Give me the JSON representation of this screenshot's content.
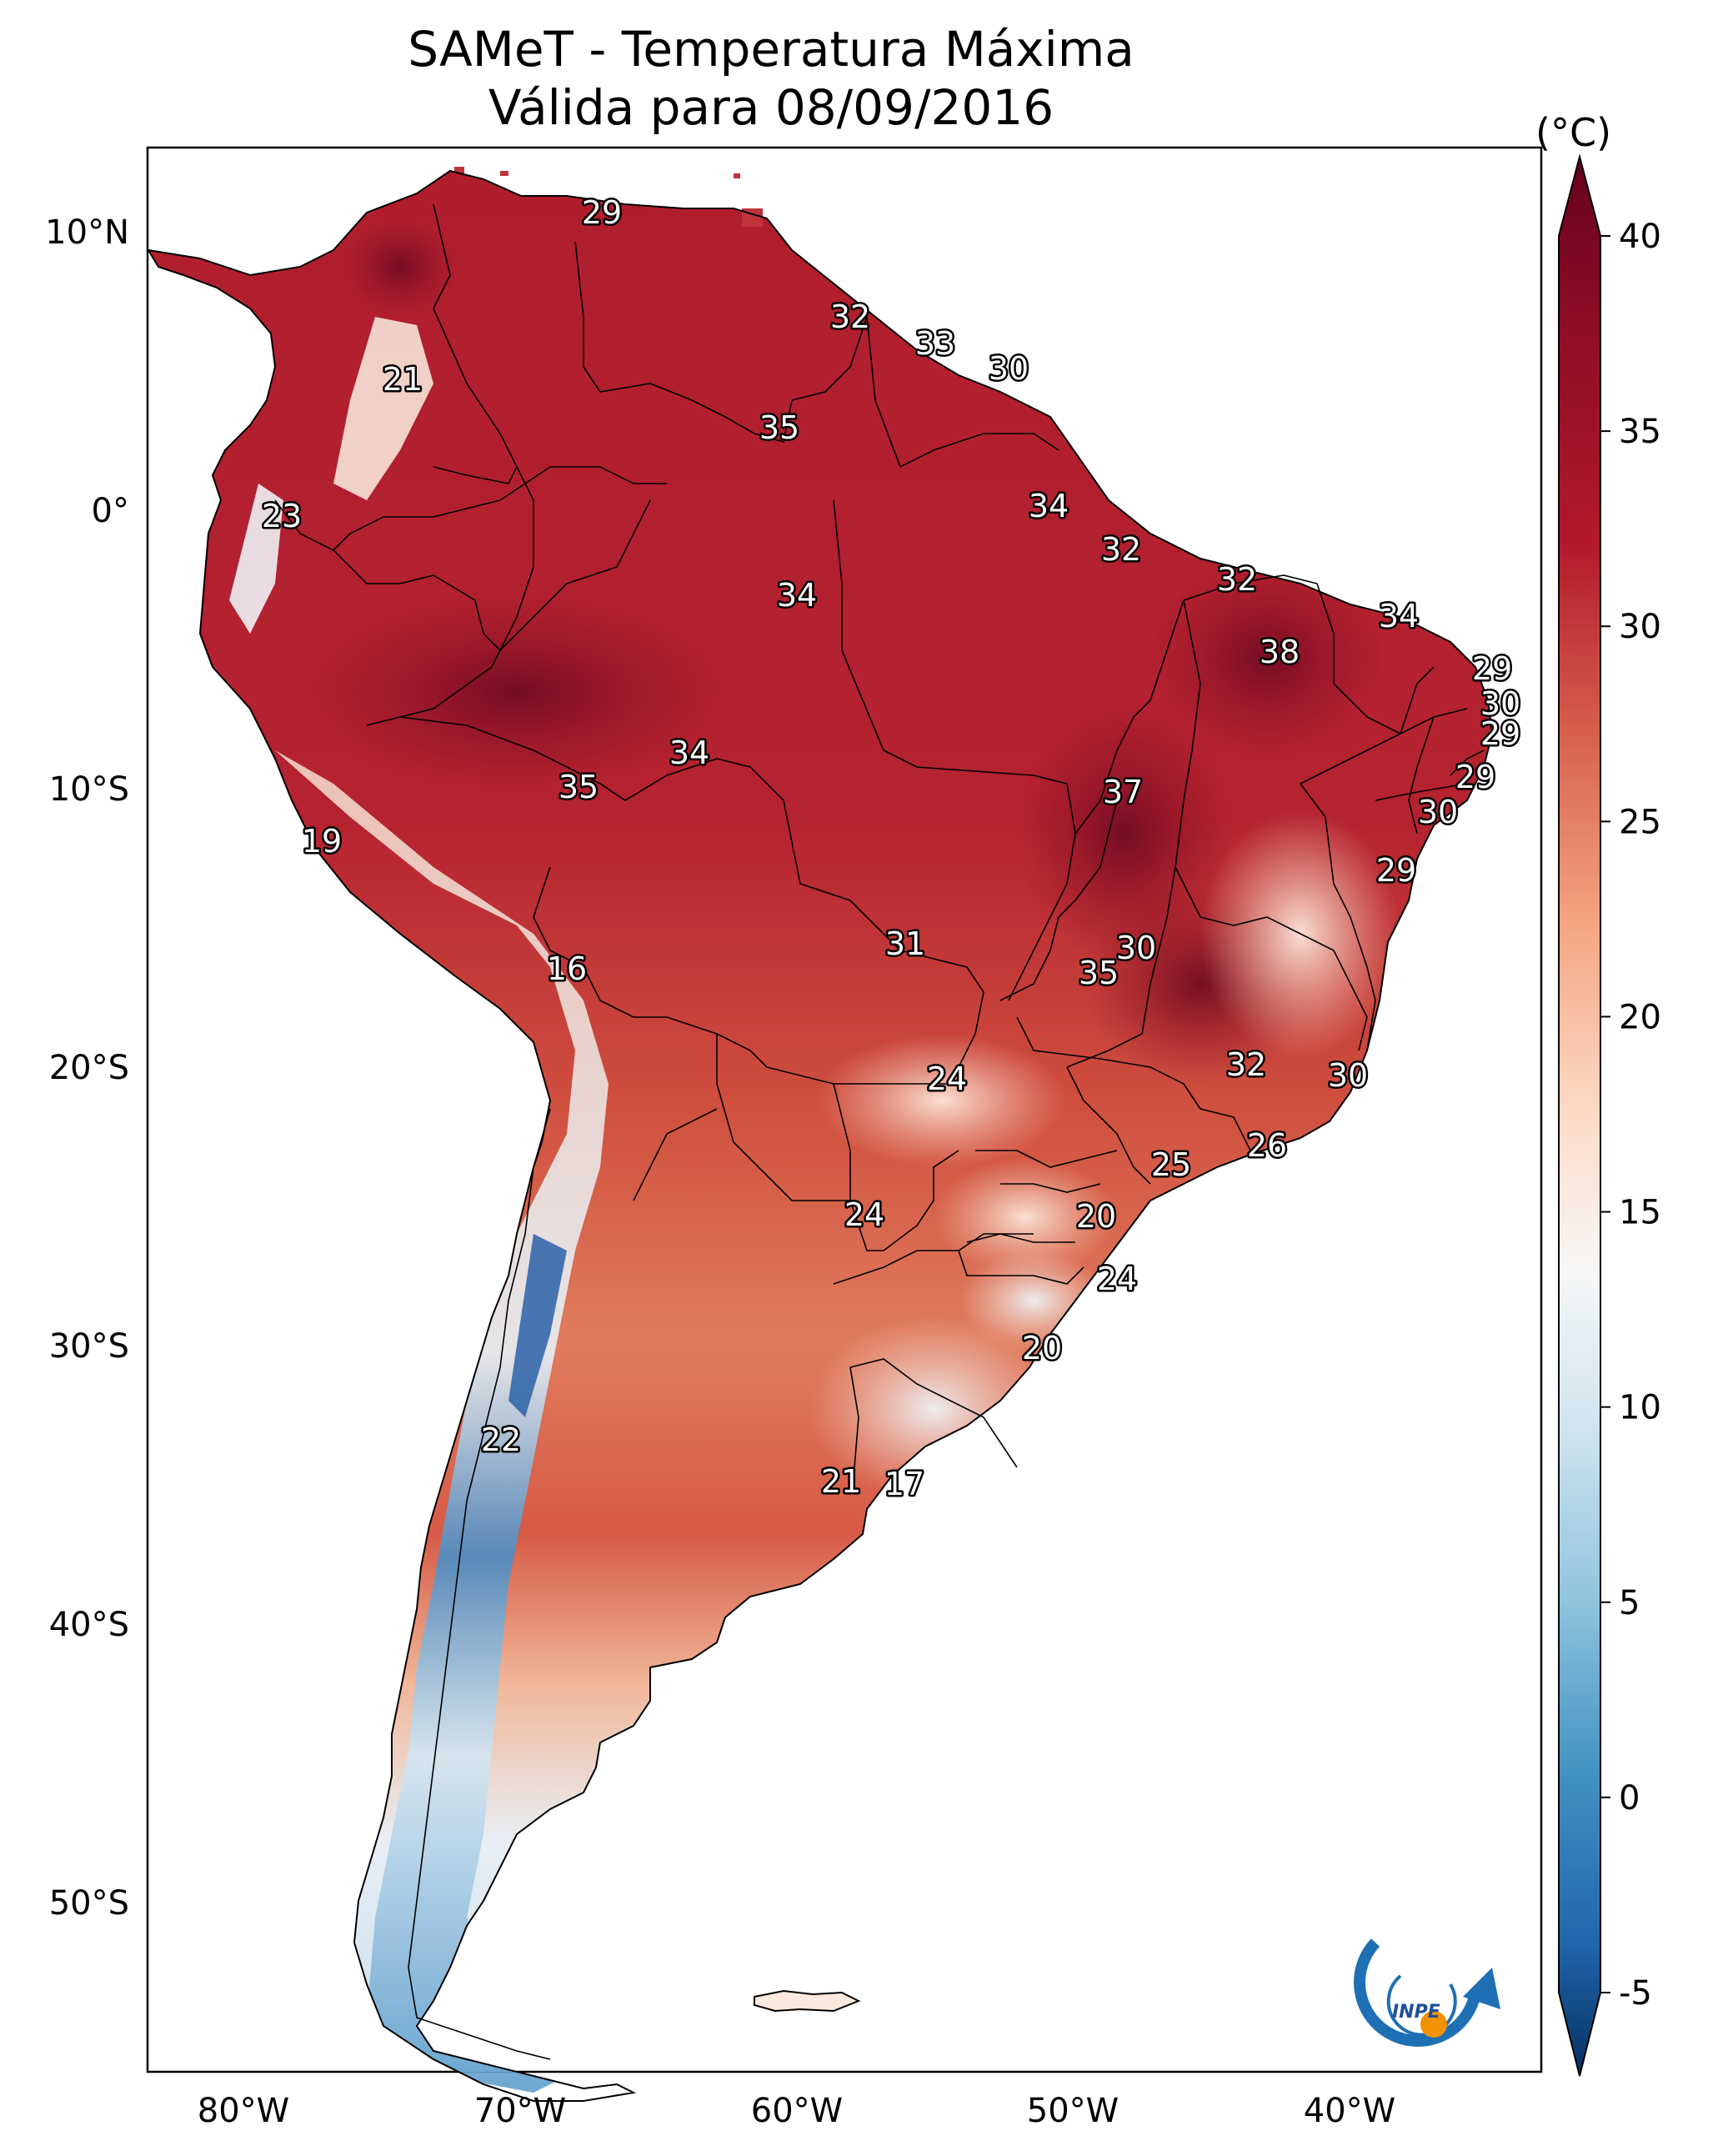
{
  "title": {
    "line1": "SAMeT - Temperatura Máxima",
    "line2": "Válida para 08/09/2016"
  },
  "colorbar": {
    "unit": "(°C)",
    "ticks": [
      "40",
      "35",
      "30",
      "25",
      "20",
      "15",
      "10",
      "5",
      "0",
      "-5"
    ],
    "min": -5,
    "max": 40,
    "extend": "both",
    "colormap": "RdBu_r",
    "colors": [
      "#053061",
      "#2166ac",
      "#4393c3",
      "#92c5de",
      "#d1e5f0",
      "#f7f7f7",
      "#fddbc7",
      "#f4a582",
      "#d6604d",
      "#b2182b",
      "#67001f"
    ]
  },
  "axes": {
    "lon_labels": [
      "80°W",
      "70°W",
      "60°W",
      "50°W",
      "40°W"
    ],
    "lat_labels": [
      "10°N",
      "0°",
      "10°S",
      "20°S",
      "30°S",
      "40°S",
      "50°S"
    ]
  },
  "contour_labels": [
    "29",
    "32",
    "33",
    "30",
    "21",
    "35",
    "34",
    "23",
    "32",
    "34",
    "32",
    "34",
    "38",
    "29",
    "30",
    "29",
    "34",
    "35",
    "29",
    "37",
    "19",
    "30",
    "29",
    "31",
    "30",
    "16",
    "35",
    "24",
    "32",
    "30",
    "26",
    "25",
    "20",
    "24",
    "24",
    "20",
    "22",
    "21",
    "17"
  ],
  "logo": {
    "name": "inpe-logo",
    "text": "INPE",
    "colors": [
      "#1f6fb5",
      "#f39200"
    ]
  }
}
